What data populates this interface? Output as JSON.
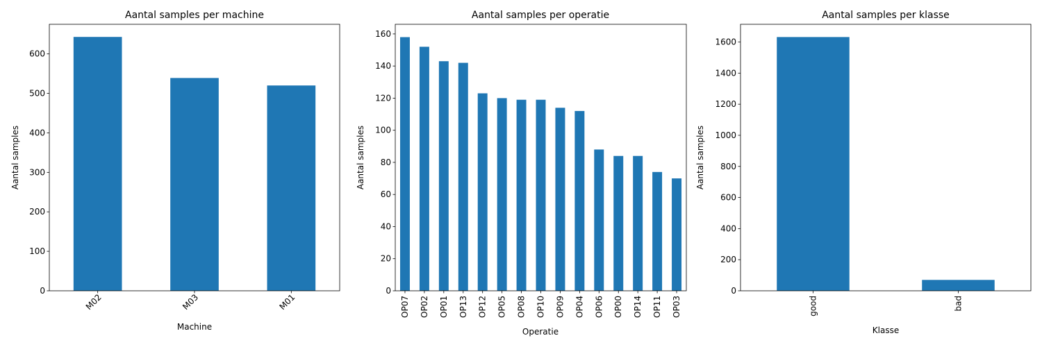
{
  "chart_data": [
    {
      "type": "bar",
      "title": "Aantal samples per machine",
      "xlabel": "Machine",
      "ylabel": "Aantal samples",
      "categories": [
        "M02",
        "M03",
        "M01"
      ],
      "values": [
        643,
        539,
        520
      ],
      "ylim": [
        0,
        675
      ],
      "yticks": [
        0,
        100,
        200,
        300,
        400,
        500,
        600
      ],
      "xtick_rotation": 45,
      "color": "#1f77b4",
      "grid": false,
      "legend": "none"
    },
    {
      "type": "bar",
      "title": "Aantal samples per operatie",
      "xlabel": "Operatie",
      "ylabel": "Aantal samples",
      "categories": [
        "OP07",
        "OP02",
        "OP01",
        "OP13",
        "OP12",
        "OP05",
        "OP08",
        "OP10",
        "OP09",
        "OP04",
        "OP06",
        "OP00",
        "OP14",
        "OP11",
        "OP03"
      ],
      "values": [
        158,
        152,
        143,
        142,
        123,
        120,
        119,
        119,
        114,
        112,
        88,
        84,
        84,
        74,
        70
      ],
      "ylim": [
        0,
        166
      ],
      "yticks": [
        0,
        20,
        40,
        60,
        80,
        100,
        120,
        140,
        160
      ],
      "xtick_rotation": 90,
      "color": "#1f77b4",
      "grid": false,
      "legend": "none"
    },
    {
      "type": "bar",
      "title": "Aantal samples per klasse",
      "xlabel": "Klasse",
      "ylabel": "Aantal samples",
      "categories": [
        "good",
        "bad"
      ],
      "values": [
        1632,
        70
      ],
      "ylim": [
        0,
        1714
      ],
      "yticks": [
        0,
        200,
        400,
        600,
        800,
        1000,
        1200,
        1400,
        1600
      ],
      "xtick_rotation": 90,
      "color": "#1f77b4",
      "grid": false,
      "legend": "none"
    }
  ]
}
